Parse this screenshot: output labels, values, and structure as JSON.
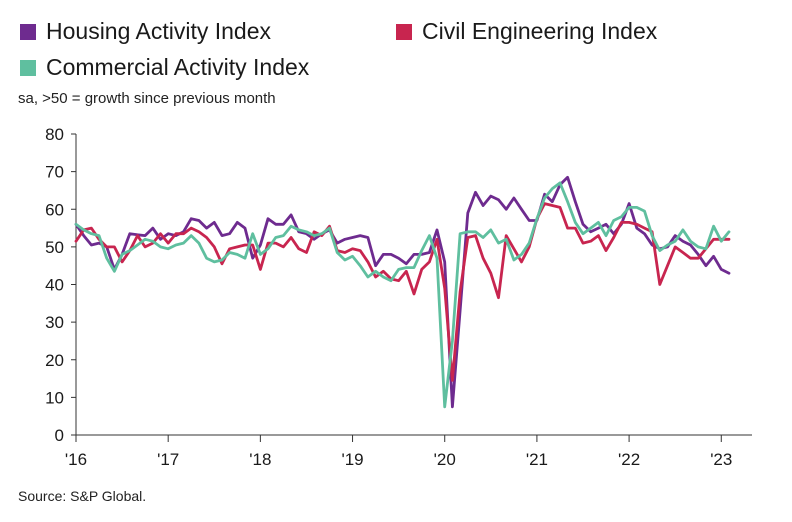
{
  "legend": {
    "housing": "Housing Activity Index",
    "civil": "Civil Engineering Index",
    "commercial": "Commercial Activity Index"
  },
  "subtitle": "sa, >50 = growth since previous month",
  "source": "Source: S&P Global.",
  "chart_data": {
    "type": "line",
    "ylim": [
      0,
      80
    ],
    "y_ticks": [
      "0",
      "10",
      "20",
      "30",
      "40",
      "50",
      "60",
      "70",
      "80"
    ],
    "x_ticks": [
      "'16",
      "'17",
      "'18",
      "'19",
      "'20",
      "'21",
      "'22",
      "'23"
    ],
    "x_range": [
      "2016-01",
      "2023-04"
    ],
    "grid": "none",
    "legend_position": "top",
    "series": [
      {
        "name": "Housing Activity Index",
        "color": "#6e2b8f",
        "values": [
          56,
          53,
          50.5,
          51,
          50,
          44,
          48,
          53.5,
          53.2,
          53,
          55,
          52,
          53.5,
          53,
          54,
          57.5,
          57,
          55,
          56.5,
          53,
          53.5,
          56.5,
          55,
          47,
          50.5,
          57.5,
          56,
          56,
          58.5,
          54,
          53.5,
          52,
          53.5,
          54.5,
          51,
          52,
          52.5,
          53,
          52.5,
          45,
          48,
          48,
          47,
          45.5,
          48,
          48,
          48.5,
          54.5,
          46,
          7.5,
          33,
          59,
          64.5,
          61,
          63.5,
          62.5,
          60,
          63,
          60,
          57,
          57,
          64,
          62,
          66.5,
          68.5,
          62,
          56,
          54,
          55,
          56,
          53.5,
          56,
          61.5,
          55,
          53.5,
          50.5,
          49.5,
          50,
          53,
          51.5,
          50.5,
          48,
          45,
          47.5,
          44,
          43
        ]
      },
      {
        "name": "Civil Engineering Index",
        "color": "#c8254f",
        "values": [
          51.5,
          54.5,
          55,
          52,
          50,
          50,
          46,
          49,
          53,
          50,
          51,
          53.5,
          51,
          53.5,
          53.5,
          55,
          54,
          52.5,
          50,
          45.5,
          49.5,
          50,
          50.5,
          50.5,
          44,
          51,
          51,
          50,
          52.5,
          49.5,
          48.5,
          54,
          53,
          55.5,
          49,
          48.5,
          49.5,
          49,
          46,
          42,
          43.5,
          41.5,
          41,
          43.5,
          37.5,
          44,
          46,
          52,
          39,
          14.5,
          38,
          52.5,
          53,
          47,
          43,
          36.5,
          53,
          49.5,
          46,
          50,
          57.5,
          61.5,
          61,
          60.5,
          55,
          55,
          51,
          51.5,
          53,
          49,
          52.5,
          56.5,
          56.5,
          56,
          55,
          54,
          40,
          45,
          50,
          48.5,
          47,
          47,
          49.5,
          52,
          52,
          52
        ]
      },
      {
        "name": "Commercial Activity Index",
        "color": "#5fbf9f",
        "values": [
          56,
          54.5,
          53.5,
          53,
          47,
          43.5,
          48,
          49,
          50.5,
          52,
          51.5,
          50,
          49.5,
          50.5,
          51,
          53,
          51,
          47,
          46,
          46.5,
          48.5,
          48,
          47,
          53.5,
          48,
          49.5,
          52.5,
          53,
          55.5,
          54.5,
          54,
          53,
          53.5,
          55,
          48.5,
          46.5,
          47.5,
          45,
          42,
          43.5,
          42,
          41,
          44,
          44.5,
          44.5,
          49,
          53,
          47,
          7.5,
          25,
          53.5,
          54,
          54,
          52.5,
          54.5,
          51,
          52,
          46.5,
          48,
          51,
          57.5,
          63,
          65.5,
          67,
          62,
          56.5,
          53.5,
          55,
          56.5,
          53,
          57,
          58,
          60.5,
          60.5,
          59.5,
          53,
          49,
          50.5,
          51.5,
          54.5,
          51.5,
          50,
          49.5,
          55.5,
          51.5,
          54
        ]
      }
    ]
  }
}
